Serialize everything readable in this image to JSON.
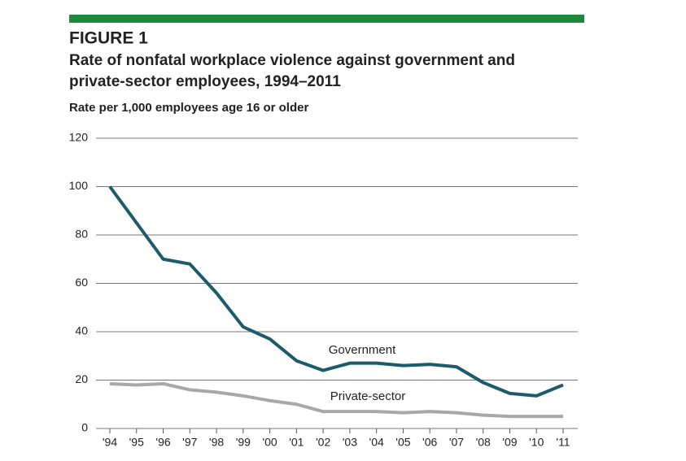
{
  "chart_data": {
    "type": "line",
    "figure_label": "FIGURE 1",
    "title": "Rate of nonfatal workplace violence against government and private-sector employees, 1994–2011",
    "subtitle": "Rate per 1,000 employees age 16 or older",
    "categories": [
      "'94",
      "'95",
      "'96",
      "'97",
      "'98",
      "'99",
      "'00",
      "'01",
      "'02",
      "'03",
      "'04",
      "'05",
      "'06",
      "'07",
      "'08",
      "'09",
      "'10",
      "'11"
    ],
    "series": [
      {
        "name": "Government",
        "color": "#1d5a6b",
        "values": [
          100,
          85,
          70,
          68,
          56,
          42,
          37,
          28,
          24,
          27,
          27,
          26,
          26.5,
          25.5,
          19,
          14.5,
          13.5,
          18
        ]
      },
      {
        "name": "Private-sector",
        "color": "#a8a8a8",
        "values": [
          18.5,
          18,
          18.5,
          16,
          15,
          13.5,
          11.5,
          10,
          7,
          7,
          7,
          6.5,
          7,
          6.5,
          5.5,
          5,
          5,
          5
        ]
      }
    ],
    "ylim": [
      0,
      120
    ],
    "yticks": [
      0,
      20,
      40,
      60,
      80,
      100,
      120
    ],
    "grid": true,
    "accent_color": "#1e8a3c"
  }
}
